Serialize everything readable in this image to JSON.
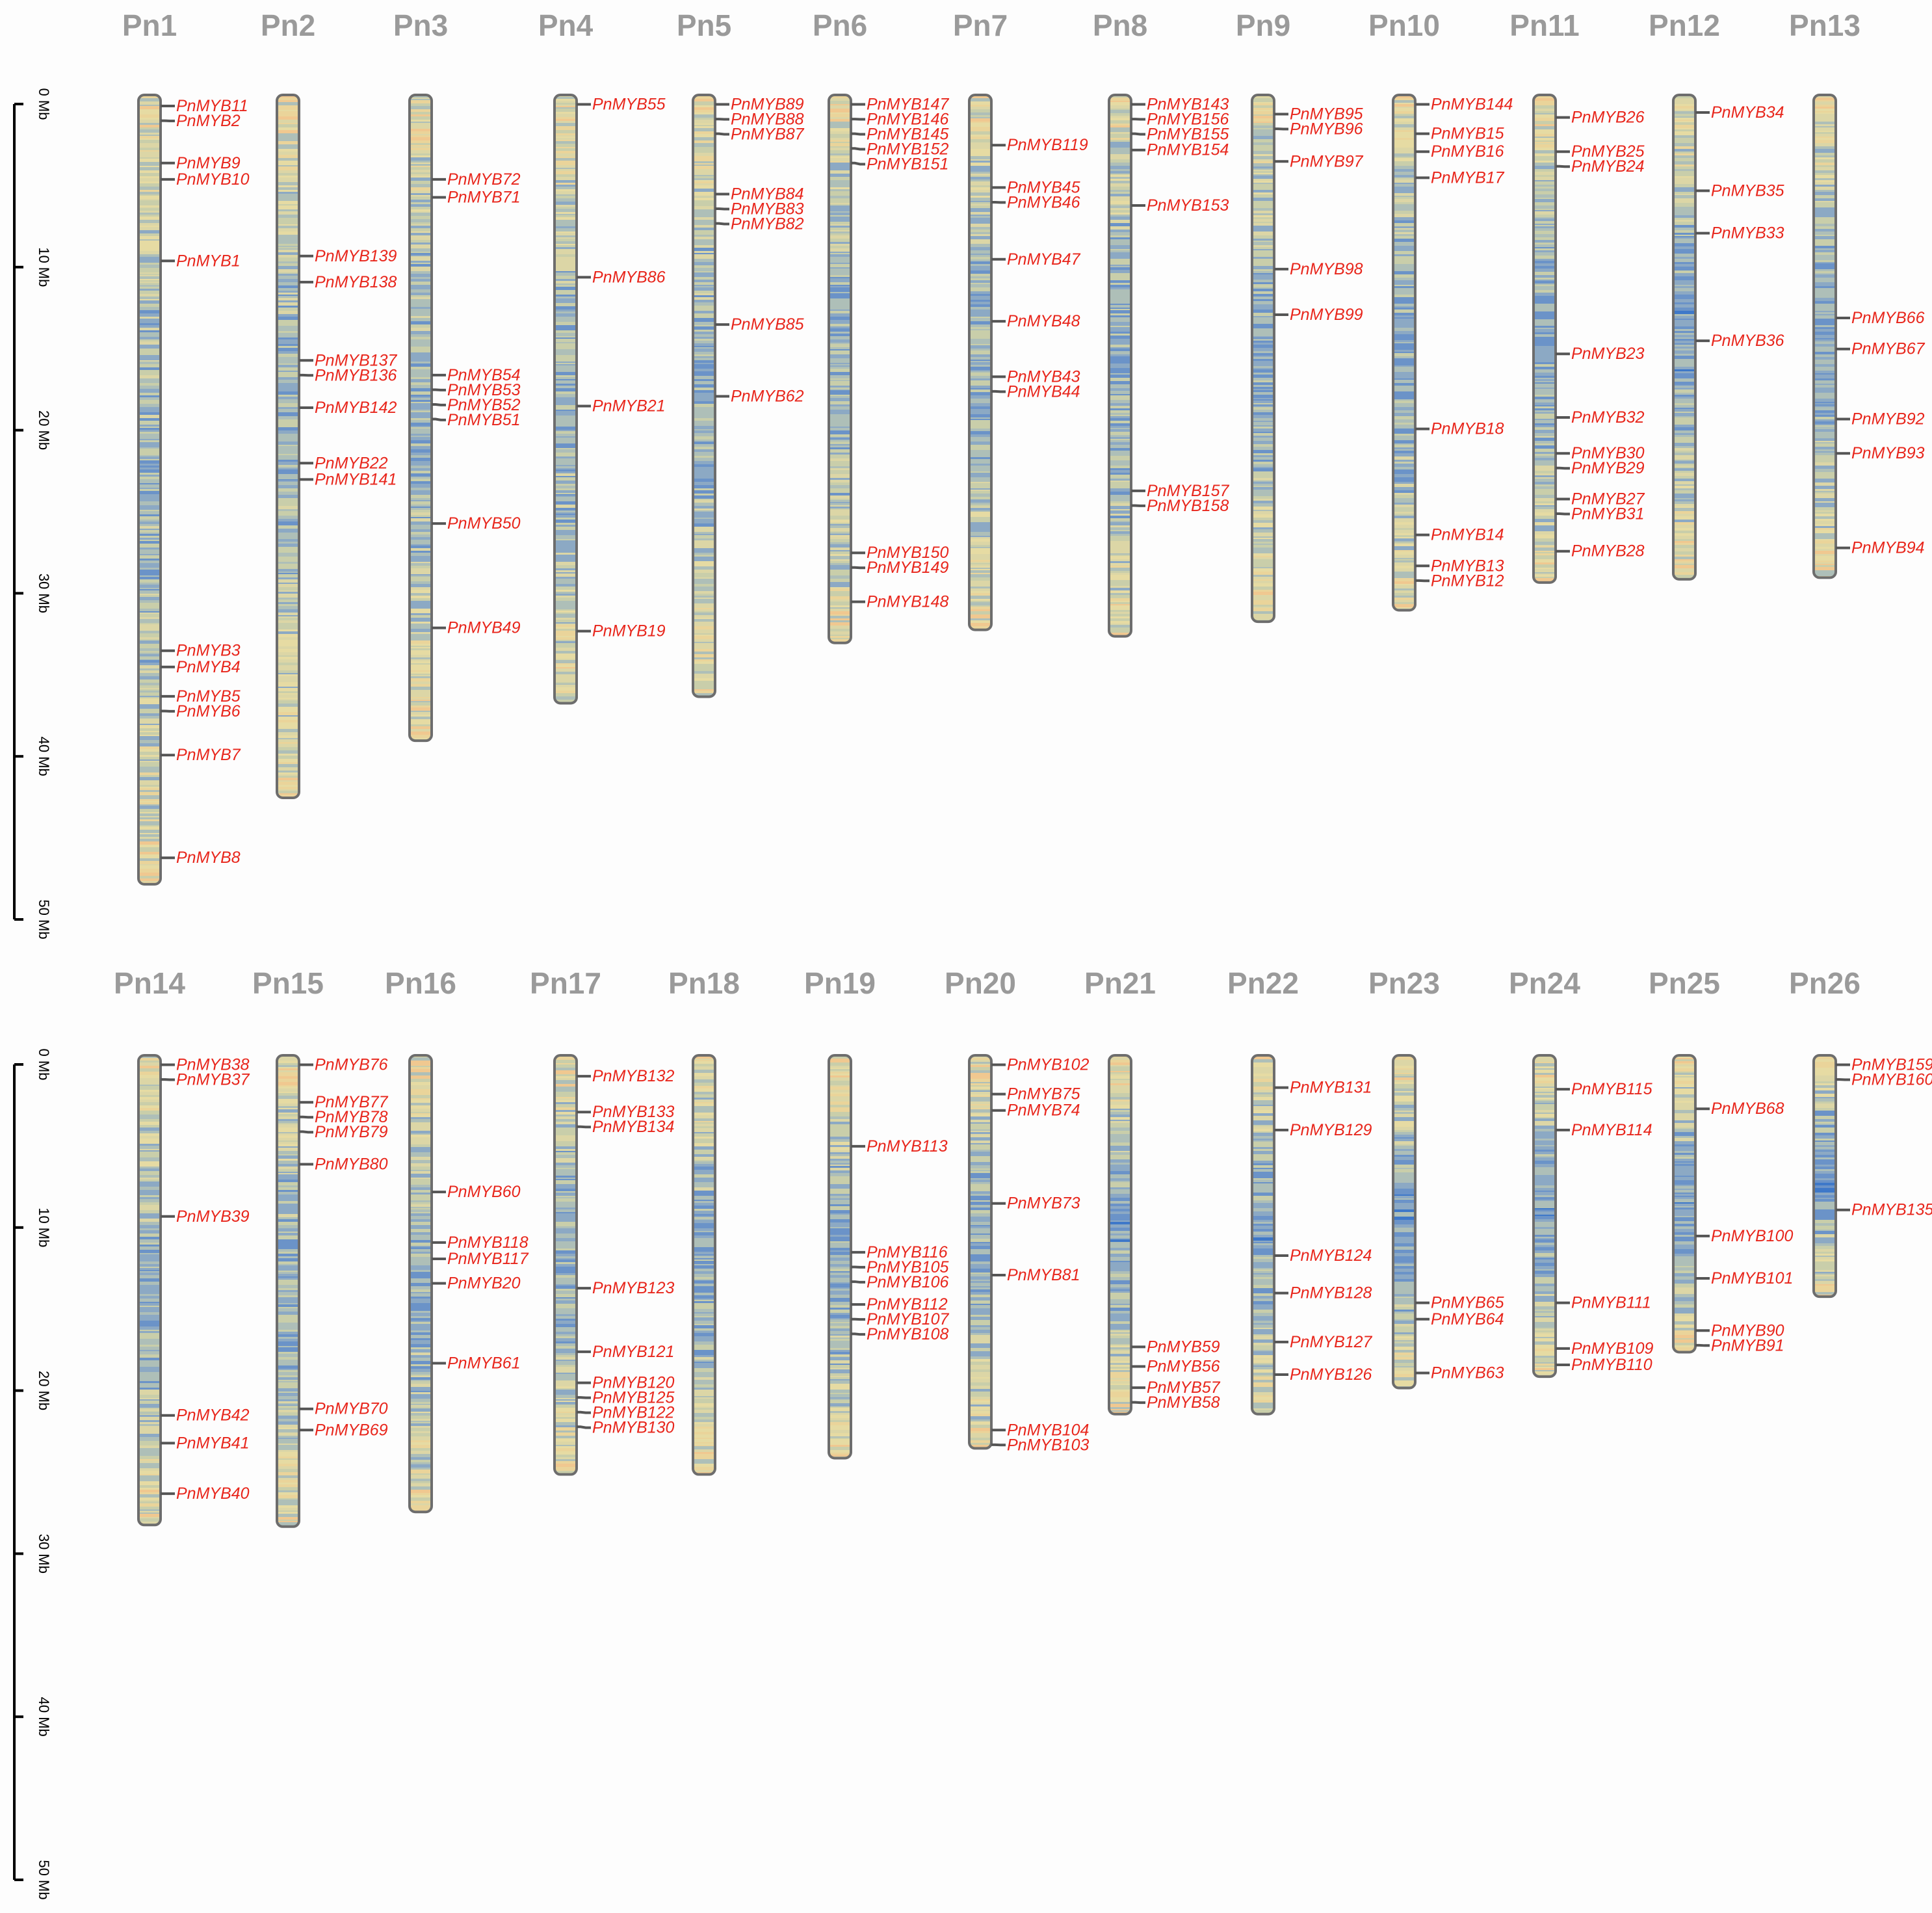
{
  "panels": [
    {
      "scale": {
        "max_mb": 50,
        "ticks": [
          0,
          10,
          20,
          30,
          40,
          50
        ],
        "unit": "Mb"
      },
      "chromosomes": [
        {
          "name": "Pn1",
          "length": 48.4,
          "genes": [
            [
              "PnMYB11",
              0.2
            ],
            [
              "PnMYB2",
              1.1
            ],
            [
              "PnMYB9",
              3.7
            ],
            [
              "PnMYB10",
              4.7
            ],
            [
              "PnMYB1",
              9.7
            ],
            [
              "PnMYB3",
              33.6
            ],
            [
              "PnMYB4",
              34.6
            ],
            [
              "PnMYB5",
              36.4
            ],
            [
              "PnMYB6",
              37.3
            ],
            [
              "PnMYB7",
              40
            ],
            [
              "PnMYB8",
              46.3
            ]
          ]
        },
        {
          "name": "Pn2",
          "length": 43.1,
          "genes": [
            [
              "PnMYB139",
              9.4
            ],
            [
              "PnMYB138",
              11
            ],
            [
              "PnMYB137",
              15.8
            ],
            [
              "PnMYB136",
              16.7
            ],
            [
              "PnMYB142",
              18.7
            ],
            [
              "PnMYB22",
              22.1
            ],
            [
              "PnMYB141",
              23.1
            ]
          ]
        },
        {
          "name": "Pn3",
          "length": 39.6,
          "genes": [
            [
              "PnMYB72",
              4.7
            ],
            [
              "PnMYB71",
              5.8
            ],
            [
              "PnMYB54",
              16.7
            ],
            [
              "PnMYB53",
              17.6
            ],
            [
              "PnMYB52",
              18.5
            ],
            [
              "PnMYB51",
              19.4
            ],
            [
              "PnMYB50",
              25.8
            ],
            [
              "PnMYB49",
              32.2
            ]
          ]
        },
        {
          "name": "Pn4",
          "length": 37.3,
          "genes": [
            [
              "PnMYB55",
              0.1
            ],
            [
              "PnMYB86",
              10.7
            ],
            [
              "PnMYB21",
              18.6
            ],
            [
              "PnMYB19",
              32.4
            ]
          ]
        },
        {
          "name": "Pn5",
          "length": 36.9,
          "genes": [
            [
              "PnMYB89",
              0.1
            ],
            [
              "PnMYB88",
              1
            ],
            [
              "PnMYB87",
              1.9
            ],
            [
              "PnMYB84",
              5.6
            ],
            [
              "PnMYB83",
              6.5
            ],
            [
              "PnMYB82",
              7.4
            ],
            [
              "PnMYB85",
              13.6
            ],
            [
              "PnMYB62",
              18
            ]
          ]
        },
        {
          "name": "Pn6",
          "length": 33.6,
          "genes": [
            [
              "PnMYB147",
              0.1
            ],
            [
              "PnMYB146",
              1
            ],
            [
              "PnMYB145",
              1.9
            ],
            [
              "PnMYB152",
              2.8
            ],
            [
              "PnMYB151",
              3.7
            ],
            [
              "PnMYB150",
              27.6
            ],
            [
              "PnMYB149",
              28.5
            ],
            [
              "PnMYB148",
              30.6
            ]
          ]
        },
        {
          "name": "Pn7",
          "length": 32.8,
          "genes": [
            [
              "PnMYB119",
              2.6
            ],
            [
              "PnMYB45",
              5.2
            ],
            [
              "PnMYB46",
              6.1
            ],
            [
              "PnMYB47",
              9.6
            ],
            [
              "PnMYB48",
              13.4
            ],
            [
              "PnMYB43",
              16.8
            ],
            [
              "PnMYB44",
              17.7
            ]
          ]
        },
        {
          "name": "Pn8",
          "length": 33.2,
          "genes": [
            [
              "PnMYB143",
              0.1
            ],
            [
              "PnMYB156",
              1
            ],
            [
              "PnMYB155",
              1.9
            ],
            [
              "PnMYB154",
              2.9
            ],
            [
              "PnMYB153",
              6.3
            ],
            [
              "PnMYB157",
              23.8
            ],
            [
              "PnMYB158",
              24.7
            ]
          ]
        },
        {
          "name": "Pn9",
          "length": 32.3,
          "genes": [
            [
              "PnMYB95",
              0.7
            ],
            [
              "PnMYB96",
              1.6
            ],
            [
              "PnMYB97",
              3.6
            ],
            [
              "PnMYB98",
              10.2
            ],
            [
              "PnMYB99",
              13
            ]
          ]
        },
        {
          "name": "Pn10",
          "length": 31.6,
          "genes": [
            [
              "PnMYB144",
              0.1
            ],
            [
              "PnMYB15",
              1.9
            ],
            [
              "PnMYB16",
              3
            ],
            [
              "PnMYB17",
              4.6
            ],
            [
              "PnMYB18",
              20
            ],
            [
              "PnMYB14",
              26.5
            ],
            [
              "PnMYB13",
              28.4
            ],
            [
              "PnMYB12",
              29.3
            ]
          ]
        },
        {
          "name": "Pn11",
          "length": 29.9,
          "genes": [
            [
              "PnMYB26",
              0.9
            ],
            [
              "PnMYB25",
              3
            ],
            [
              "PnMYB24",
              3.9
            ],
            [
              "PnMYB23",
              15.4
            ],
            [
              "PnMYB32",
              19.3
            ],
            [
              "PnMYB30",
              21.5
            ],
            [
              "PnMYB29",
              22.4
            ],
            [
              "PnMYB27",
              24.3
            ],
            [
              "PnMYB31",
              25.2
            ],
            [
              "PnMYB28",
              27.5
            ]
          ]
        },
        {
          "name": "Pn12",
          "length": 29.7,
          "genes": [
            [
              "PnMYB34",
              0.6
            ],
            [
              "PnMYB35",
              5.4
            ],
            [
              "PnMYB33",
              8
            ],
            [
              "PnMYB36",
              14.6
            ]
          ]
        },
        {
          "name": "Pn13",
          "length": 29.6,
          "genes": [
            [
              "PnMYB66",
              13.2
            ],
            [
              "PnMYB67",
              15.1
            ],
            [
              "PnMYB92",
              19.4
            ],
            [
              "PnMYB93",
              21.5
            ],
            [
              "PnMYB94",
              27.3
            ]
          ]
        }
      ]
    },
    {
      "scale": {
        "max_mb": 50,
        "ticks": [
          0,
          10,
          20,
          30,
          40,
          50
        ],
        "unit": "Mb"
      },
      "chromosomes": [
        {
          "name": "Pn14",
          "length": 28.8,
          "genes": [
            [
              "PnMYB38",
              0.1
            ],
            [
              "PnMYB37",
              1
            ],
            [
              "PnMYB39",
              9.4
            ],
            [
              "PnMYB42",
              21.6
            ],
            [
              "PnMYB41",
              23.3
            ],
            [
              "PnMYB40",
              26.4
            ]
          ]
        },
        {
          "name": "Pn15",
          "length": 28.9,
          "genes": [
            [
              "PnMYB76",
              0.1
            ],
            [
              "PnMYB77",
              2.4
            ],
            [
              "PnMYB78",
              3.3
            ],
            [
              "PnMYB79",
              4.2
            ],
            [
              "PnMYB80",
              6.2
            ],
            [
              "PnMYB70",
              21.2
            ],
            [
              "PnMYB69",
              22.5
            ]
          ]
        },
        {
          "name": "Pn16",
          "length": 28,
          "genes": [
            [
              "PnMYB60",
              7.9
            ],
            [
              "PnMYB118",
              11
            ],
            [
              "PnMYB117",
              12
            ],
            [
              "PnMYB20",
              13.5
            ],
            [
              "PnMYB61",
              18.4
            ]
          ]
        },
        {
          "name": "Pn17",
          "length": 25.7,
          "genes": [
            [
              "PnMYB132",
              0.8
            ],
            [
              "PnMYB133",
              3
            ],
            [
              "PnMYB134",
              3.9
            ],
            [
              "PnMYB123",
              13.8
            ],
            [
              "PnMYB121",
              17.7
            ],
            [
              "PnMYB120",
              19.6
            ],
            [
              "PnMYB125",
              20.5
            ],
            [
              "PnMYB122",
              21.4
            ],
            [
              "PnMYB130",
              22.3
            ]
          ]
        },
        {
          "name": "Pn18",
          "length": 25.7,
          "genes": []
        },
        {
          "name": "Pn19",
          "length": 24.7,
          "genes": [
            [
              "PnMYB113",
              5.1
            ],
            [
              "PnMYB116",
              11.6
            ],
            [
              "PnMYB105",
              12.5
            ],
            [
              "PnMYB106",
              13.4
            ],
            [
              "PnMYB112",
              14.8
            ],
            [
              "PnMYB107",
              15.7
            ],
            [
              "PnMYB108",
              16.6
            ]
          ]
        },
        {
          "name": "Pn20",
          "length": 24.1,
          "genes": [
            [
              "PnMYB102",
              0.1
            ],
            [
              "PnMYB75",
              1.9
            ],
            [
              "PnMYB74",
              2.9
            ],
            [
              "PnMYB73",
              8.6
            ],
            [
              "PnMYB81",
              13
            ],
            [
              "PnMYB104",
              22.5
            ],
            [
              "PnMYB103",
              23.4
            ]
          ]
        },
        {
          "name": "Pn21",
          "length": 22,
          "genes": [
            [
              "PnMYB59",
              17.4
            ],
            [
              "PnMYB56",
              18.6
            ],
            [
              "PnMYB57",
              19.9
            ],
            [
              "PnMYB58",
              20.8
            ]
          ]
        },
        {
          "name": "Pn22",
          "length": 22,
          "genes": [
            [
              "PnMYB131",
              1.5
            ],
            [
              "PnMYB129",
              4.1
            ],
            [
              "PnMYB124",
              11.8
            ],
            [
              "PnMYB128",
              14.1
            ],
            [
              "PnMYB127",
              17.1
            ],
            [
              "PnMYB126",
              19.1
            ]
          ]
        },
        {
          "name": "Pn23",
          "length": 20.4,
          "genes": [
            [
              "PnMYB65",
              14.7
            ],
            [
              "PnMYB64",
              15.7
            ],
            [
              "PnMYB63",
              19
            ]
          ]
        },
        {
          "name": "Pn24",
          "length": 19.7,
          "genes": [
            [
              "PnMYB115",
              1.6
            ],
            [
              "PnMYB114",
              4.1
            ],
            [
              "PnMYB111",
              14.7
            ],
            [
              "PnMYB109",
              17.5
            ],
            [
              "PnMYB110",
              18.5
            ]
          ]
        },
        {
          "name": "Pn25",
          "length": 18.2,
          "genes": [
            [
              "PnMYB68",
              2.8
            ],
            [
              "PnMYB100",
              10.6
            ],
            [
              "PnMYB101",
              13.2
            ],
            [
              "PnMYB90",
              16.4
            ],
            [
              "PnMYB91",
              17.3
            ]
          ]
        },
        {
          "name": "Pn26",
          "length": 14.8,
          "genes": [
            [
              "PnMYB159",
              0.1
            ],
            [
              "PnMYB160",
              1
            ],
            [
              "PnMYB135",
              9
            ]
          ]
        }
      ]
    }
  ],
  "colors": {
    "label": "#e8261c",
    "title": "#9a9a9a",
    "outline": "#6d6d6d",
    "tick": "#555555"
  }
}
